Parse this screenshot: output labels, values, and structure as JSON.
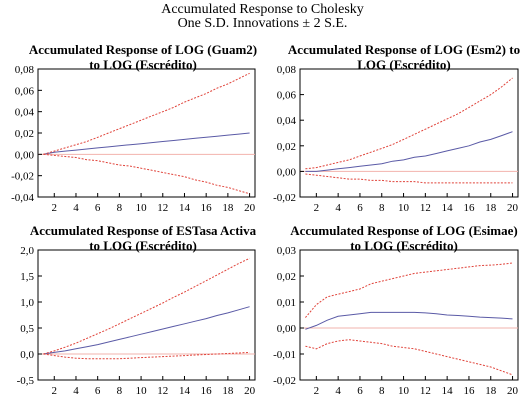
{
  "figure": {
    "title": "Accumulated Response to Cholesky",
    "subtitle": "One S.D. Innovations ± 2 S.E."
  },
  "colors": {
    "response": "#5a5aa6",
    "bands": "#e0433a",
    "zero": "#f2b3ad",
    "axis": "#000000"
  },
  "chart_data": [
    {
      "type": "line",
      "title_lines": [
        "Accumulated Response of LOG (Guam2)",
        "to LOG (Escrédito)"
      ],
      "x": [
        1,
        2,
        3,
        4,
        5,
        6,
        7,
        8,
        9,
        10,
        11,
        12,
        13,
        14,
        15,
        16,
        17,
        18,
        19,
        20
      ],
      "xticks": [
        2,
        4,
        6,
        8,
        10,
        12,
        14,
        16,
        18,
        20
      ],
      "xticklabels": [
        "2",
        "4",
        "6",
        "8",
        "10",
        "12",
        "14",
        "16",
        "18",
        "20"
      ],
      "ylim": [
        -0.04,
        0.08
      ],
      "yticks": [
        -0.04,
        -0.02,
        0,
        0.02,
        0.04,
        0.06,
        0.08
      ],
      "yticklabels": [
        "-0,04",
        "-0,02",
        "0,00",
        "0,02",
        "0,04",
        "0,06",
        "0,08"
      ],
      "series": [
        {
          "role": "response",
          "values": [
            0.0,
            0.002,
            0.003,
            0.004,
            0.005,
            0.006,
            0.007,
            0.008,
            0.009,
            0.01,
            0.011,
            0.012,
            0.013,
            0.014,
            0.015,
            0.016,
            0.017,
            0.018,
            0.019,
            0.02
          ]
        },
        {
          "role": "upper",
          "values": [
            0.0,
            0.003,
            0.006,
            0.009,
            0.012,
            0.016,
            0.02,
            0.024,
            0.028,
            0.032,
            0.036,
            0.04,
            0.044,
            0.049,
            0.053,
            0.057,
            0.062,
            0.066,
            0.071,
            0.076
          ]
        },
        {
          "role": "lower",
          "values": [
            0.0,
            -0.001,
            -0.002,
            -0.003,
            -0.005,
            -0.006,
            -0.008,
            -0.01,
            -0.011,
            -0.013,
            -0.015,
            -0.017,
            -0.019,
            -0.021,
            -0.024,
            -0.026,
            -0.029,
            -0.031,
            -0.034,
            -0.037
          ]
        }
      ]
    },
    {
      "type": "line",
      "title_lines": [
        "Accumulated Response of LOG (Esm2) to",
        "LOG (Escrédito)"
      ],
      "x": [
        1,
        2,
        3,
        4,
        5,
        6,
        7,
        8,
        9,
        10,
        11,
        12,
        13,
        14,
        15,
        16,
        17,
        18,
        19,
        20
      ],
      "xticks": [
        2,
        4,
        6,
        8,
        10,
        12,
        14,
        16,
        18,
        20
      ],
      "xticklabels": [
        "2",
        "4",
        "6",
        "8",
        "10",
        "12",
        "14",
        "16",
        "18",
        "20"
      ],
      "ylim": [
        -0.02,
        0.08
      ],
      "yticks": [
        -0.02,
        0,
        0.02,
        0.04,
        0.06,
        0.08
      ],
      "yticklabels": [
        "-0,02",
        "0,00",
        "0,02",
        "0,04",
        "0,06",
        "0,08"
      ],
      "series": [
        {
          "role": "response",
          "values": [
            0.0,
            0.0,
            0.001,
            0.002,
            0.003,
            0.004,
            0.005,
            0.006,
            0.008,
            0.009,
            0.011,
            0.012,
            0.014,
            0.016,
            0.018,
            0.02,
            0.023,
            0.025,
            0.028,
            0.031
          ]
        },
        {
          "role": "upper",
          "values": [
            0.002,
            0.003,
            0.005,
            0.007,
            0.009,
            0.012,
            0.015,
            0.018,
            0.021,
            0.025,
            0.029,
            0.033,
            0.037,
            0.041,
            0.045,
            0.05,
            0.055,
            0.06,
            0.066,
            0.073
          ]
        },
        {
          "role": "lower",
          "values": [
            -0.002,
            -0.003,
            -0.004,
            -0.005,
            -0.006,
            -0.006,
            -0.007,
            -0.007,
            -0.008,
            -0.008,
            -0.008,
            -0.009,
            -0.009,
            -0.009,
            -0.009,
            -0.009,
            -0.009,
            -0.009,
            -0.009,
            -0.009
          ]
        }
      ]
    },
    {
      "type": "line",
      "title_lines": [
        "Accumulated Response of ESTasa Activa",
        "to LOG (Escrédito)"
      ],
      "x": [
        1,
        2,
        3,
        4,
        5,
        6,
        7,
        8,
        9,
        10,
        11,
        12,
        13,
        14,
        15,
        16,
        17,
        18,
        19,
        20
      ],
      "xticks": [
        2,
        4,
        6,
        8,
        10,
        12,
        14,
        16,
        18,
        20
      ],
      "xticklabels": [
        "2",
        "4",
        "6",
        "8",
        "10",
        "12",
        "14",
        "16",
        "18",
        "20"
      ],
      "ylim": [
        -0.5,
        2.0
      ],
      "yticks": [
        -0.5,
        0,
        0.5,
        1.0,
        1.5,
        2.0
      ],
      "yticklabels": [
        "-0,5",
        "0,0",
        "0,5",
        "1,0",
        "1,5",
        "2,0"
      ],
      "series": [
        {
          "role": "response",
          "values": [
            0.0,
            0.03,
            0.06,
            0.1,
            0.14,
            0.18,
            0.23,
            0.28,
            0.33,
            0.38,
            0.43,
            0.48,
            0.53,
            0.58,
            0.63,
            0.68,
            0.74,
            0.79,
            0.85,
            0.91
          ]
        },
        {
          "role": "upper",
          "values": [
            0.0,
            0.06,
            0.13,
            0.21,
            0.3,
            0.39,
            0.48,
            0.58,
            0.68,
            0.78,
            0.88,
            0.98,
            1.09,
            1.19,
            1.3,
            1.41,
            1.52,
            1.63,
            1.74,
            1.84
          ]
        },
        {
          "role": "lower",
          "values": [
            0.0,
            -0.03,
            -0.06,
            -0.08,
            -0.09,
            -0.09,
            -0.09,
            -0.09,
            -0.08,
            -0.07,
            -0.06,
            -0.05,
            -0.04,
            -0.03,
            -0.02,
            -0.01,
            0.0,
            0.01,
            0.02,
            0.03
          ]
        }
      ]
    },
    {
      "type": "line",
      "title_lines": [
        "Accumulated Response of LOG (Esimae)",
        "to LOG (Escrédito)"
      ],
      "x": [
        1,
        2,
        3,
        4,
        5,
        6,
        7,
        8,
        9,
        10,
        11,
        12,
        13,
        14,
        15,
        16,
        17,
        18,
        19,
        20
      ],
      "xticks": [
        2,
        4,
        6,
        8,
        10,
        12,
        14,
        16,
        18,
        20
      ],
      "xticklabels": [
        "2",
        "4",
        "6",
        "8",
        "10",
        "12",
        "14",
        "16",
        "18",
        "20"
      ],
      "ylim": [
        -0.02,
        0.03
      ],
      "yticks": [
        -0.02,
        -0.01,
        0,
        0.01,
        0.02,
        0.03
      ],
      "yticklabels": [
        "-0,02",
        "-0,01",
        "0,00",
        "0,01",
        "0,02",
        "0,03"
      ],
      "series": [
        {
          "role": "response",
          "values": [
            -0.0005,
            0.001,
            0.003,
            0.0045,
            0.005,
            0.0055,
            0.006,
            0.006,
            0.006,
            0.006,
            0.006,
            0.0058,
            0.0055,
            0.005,
            0.0048,
            0.0045,
            0.0042,
            0.004,
            0.0038,
            0.0035
          ]
        },
        {
          "role": "upper",
          "values": [
            0.004,
            0.009,
            0.012,
            0.013,
            0.014,
            0.015,
            0.017,
            0.018,
            0.019,
            0.02,
            0.021,
            0.0215,
            0.022,
            0.0225,
            0.023,
            0.0235,
            0.024,
            0.0242,
            0.0245,
            0.025
          ]
        },
        {
          "role": "lower",
          "values": [
            -0.007,
            -0.008,
            -0.006,
            -0.005,
            -0.0045,
            -0.005,
            -0.0055,
            -0.006,
            -0.007,
            -0.0075,
            -0.008,
            -0.009,
            -0.01,
            -0.011,
            -0.012,
            -0.013,
            -0.014,
            -0.015,
            -0.0165,
            -0.018
          ]
        }
      ]
    }
  ]
}
